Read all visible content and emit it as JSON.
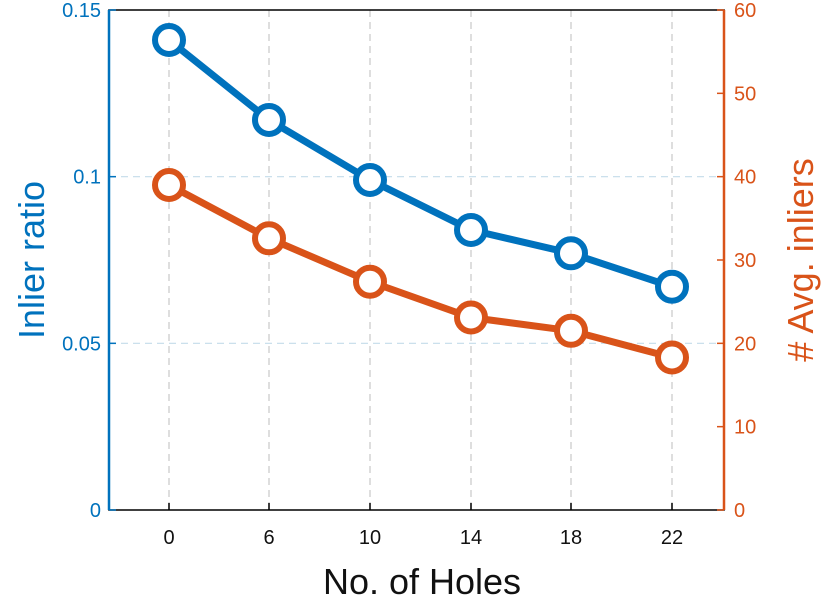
{
  "chart_data": {
    "type": "line",
    "title": "",
    "xlabel": "No. of Holes",
    "categories": [
      "0",
      "6",
      "10",
      "14",
      "18",
      "22"
    ],
    "y_left": {
      "label": "Inlier ratio",
      "range": [
        0,
        0.15
      ],
      "ticks": [
        "0",
        "0.05",
        "0.1",
        "0.15"
      ],
      "tick_values": [
        0,
        0.05,
        0.1,
        0.15
      ],
      "color": "#0072BD"
    },
    "y_right": {
      "label": "# Avg. inliers",
      "range": [
        0,
        60
      ],
      "ticks": [
        "0",
        "10",
        "20",
        "30",
        "40",
        "50",
        "60"
      ],
      "tick_values": [
        0,
        10,
        20,
        30,
        40,
        50,
        60
      ],
      "color": "#D95319"
    },
    "series": [
      {
        "axis": "left",
        "color": "#0072BD",
        "values": [
          0.141,
          0.117,
          0.099,
          0.084,
          0.077,
          0.067
        ]
      },
      {
        "axis": "right",
        "color": "#D95319",
        "values": [
          39.0,
          32.6,
          27.4,
          23.1,
          21.5,
          18.3
        ]
      }
    ],
    "grid": true,
    "legend": "none"
  }
}
